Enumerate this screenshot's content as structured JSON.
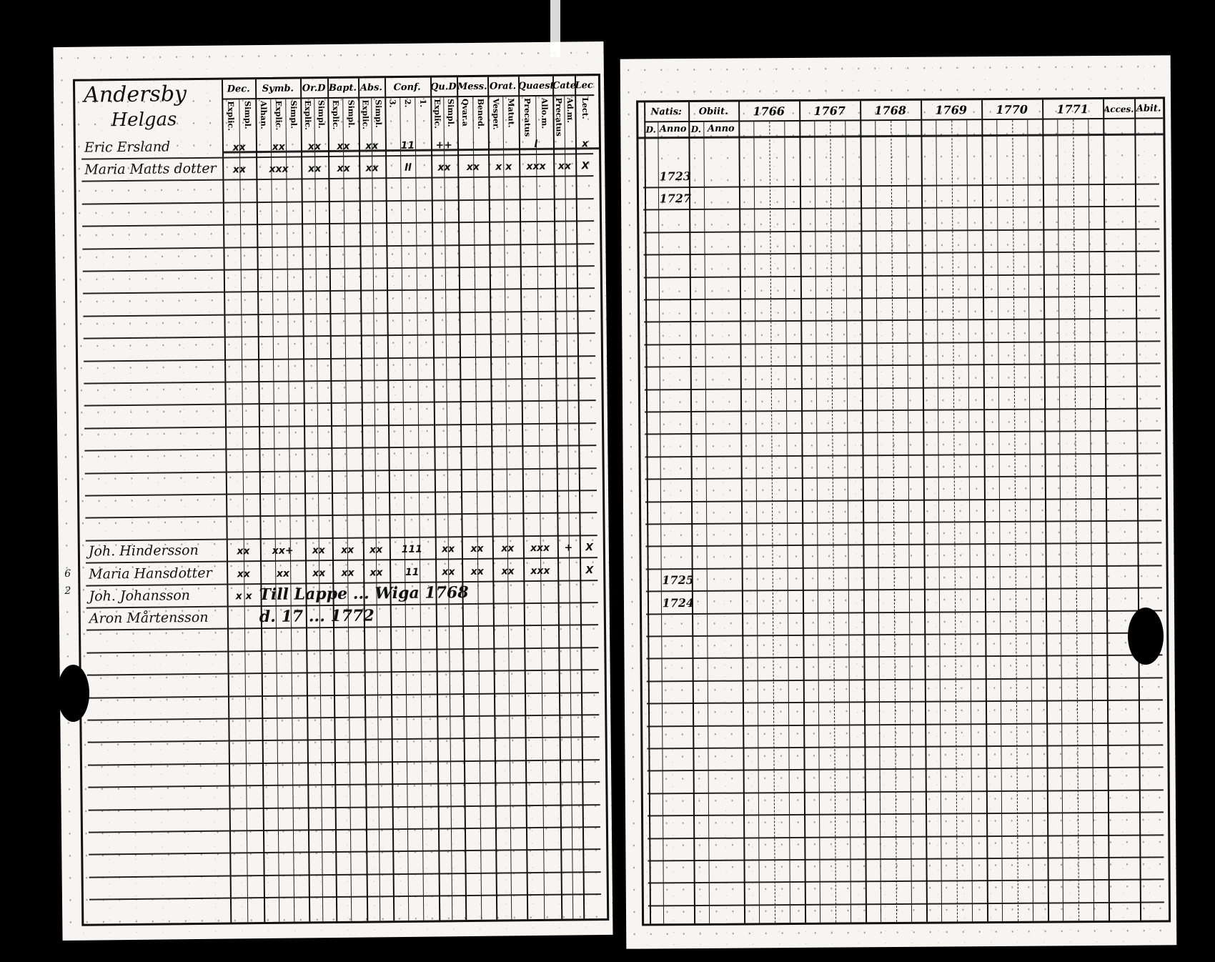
{
  "left_page": {
    "parish_heading": "Andersby",
    "farm_heading": "Helgas",
    "margin_numbers": [
      "6",
      "2"
    ],
    "column_groups": [
      {
        "label": "Dec.",
        "subs": [
          "Explic.",
          "Simpl."
        ]
      },
      {
        "label": "Symb.",
        "subs": [
          "Alhan.",
          "Explic.",
          "Simpl."
        ]
      },
      {
        "label": "Or.D",
        "subs": [
          "Explic.",
          "Simpl."
        ]
      },
      {
        "label": "Bapt.",
        "subs": [
          "Explic.",
          "Simpl."
        ]
      },
      {
        "label": "Abs.",
        "subs": [
          "Explic.",
          "Simpl."
        ]
      },
      {
        "label": "Conf.",
        "subs": [
          "3.",
          "2.",
          "1."
        ]
      },
      {
        "label": "Qu.D",
        "subs": [
          "Explic.",
          "Simpl."
        ]
      },
      {
        "label": "Mess.",
        "subs": [
          "Qvar.a",
          "Bened."
        ]
      },
      {
        "label": "Orat.",
        "subs": [
          "Vesper.",
          "Matut."
        ]
      },
      {
        "label": "Quaest.",
        "subs": [
          "Precatus",
          "Allo.m."
        ]
      },
      {
        "label": "Catech.",
        "subs": [
          "Precatus",
          "Ad.m."
        ]
      },
      {
        "label": "Lect.",
        "subs": [
          "Lect."
        ]
      }
    ],
    "entries": [
      {
        "row": 0,
        "name": "Eric Ersland",
        "marks": [
          "xx",
          "xx",
          "xx",
          "xx",
          "xx",
          "11",
          "++",
          "",
          "",
          "l",
          "",
          "x"
        ]
      },
      {
        "row": 1,
        "name": "Maria Matts dotter",
        "marks": [
          "xx",
          "xxx",
          "xx",
          "xx",
          "xx",
          "ll",
          "xx",
          "xx",
          "x x",
          "xxx",
          "xx",
          "X"
        ]
      },
      {
        "row": 18,
        "name": "Joh. Hindersson",
        "marks": [
          "xx",
          "xx+",
          "xx",
          "xx",
          "xx",
          "111",
          "xx",
          "xx",
          "xx",
          "xxx",
          "+",
          "X"
        ]
      },
      {
        "row": 19,
        "name": "Maria Hansdotter",
        "marks": [
          "xx",
          "xx",
          "xx",
          "xx",
          "xx",
          "11",
          "xx",
          "xx",
          "xx",
          "xxx",
          "",
          "X"
        ]
      },
      {
        "row": 20,
        "name": "Joh. Johansson",
        "marks": [
          "x x",
          "",
          "",
          "",
          "",
          "",
          "",
          "",
          "",
          "",
          "",
          ""
        ],
        "note": "Till Lappe ... Wiga 1768"
      },
      {
        "row": 21,
        "name": "Aron Mårtensson",
        "marks": [
          "",
          "",
          "",
          "",
          "",
          "",
          "",
          "",
          "",
          "",
          "",
          ""
        ],
        "note": "d. 17 ... 1772"
      }
    ]
  },
  "right_page": {
    "natis": {
      "label": "Natis:",
      "subs": [
        "D.",
        "Anno"
      ]
    },
    "obiit": {
      "label": "Obiit.",
      "subs": [
        "D.",
        "Anno"
      ]
    },
    "years": [
      "1766",
      "1767",
      "1768",
      "1769",
      "1770",
      "1771"
    ],
    "accessit": "Acces.",
    "abit": "Abit.",
    "birth_years": [
      {
        "row": 0,
        "anno": "1723"
      },
      {
        "row": 1,
        "anno": "1727"
      },
      {
        "row": 18,
        "anno": "1725"
      },
      {
        "row": 19,
        "anno": "1724"
      }
    ]
  }
}
